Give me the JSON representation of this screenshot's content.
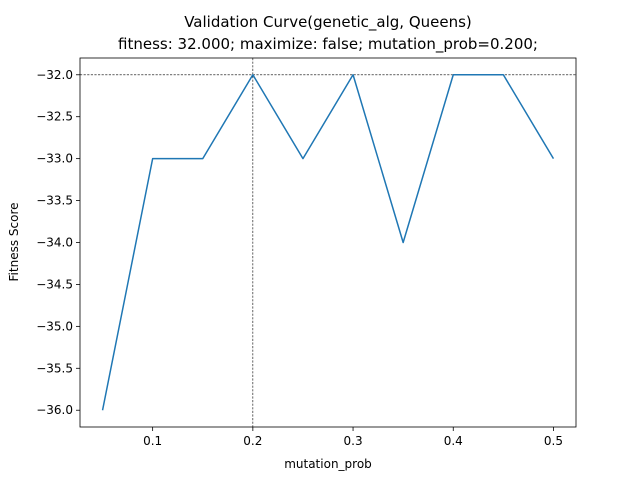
{
  "chart_data": {
    "type": "line",
    "title": "Validation Curve(genetic_alg, Queens)",
    "subtitle": "fitness: 32.000; maximize: false; mutation_prob=0.200;",
    "xlabel": "mutation_prob",
    "ylabel": "Fitness Score",
    "xlim": [
      0.0275,
      0.5225
    ],
    "ylim": [
      -36.2,
      -31.8
    ],
    "x_ticks": [
      0.1,
      0.2,
      0.3,
      0.4,
      0.5
    ],
    "x_tick_labels": [
      "0.1",
      "0.2",
      "0.3",
      "0.4",
      "0.5"
    ],
    "y_ticks": [
      -32.0,
      -32.5,
      -33.0,
      -33.5,
      -34.0,
      -34.5,
      -35.0,
      -35.5,
      -36.0
    ],
    "y_tick_labels": [
      "−32.0",
      "−32.5",
      "−33.0",
      "−33.5",
      "−34.0",
      "−34.5",
      "−35.0",
      "−35.5",
      "−36.0"
    ],
    "grid": false,
    "series": [
      {
        "color": "#1f77b4",
        "x": [
          0.05,
          0.1,
          0.15,
          0.2,
          0.25,
          0.3,
          0.35,
          0.4,
          0.45,
          0.5
        ],
        "y": [
          -36,
          -33,
          -33,
          -32,
          -33,
          -32,
          -34,
          -32,
          -32,
          -33
        ]
      }
    ],
    "reference_lines": {
      "vertical_x": 0.2,
      "horizontal_y": -32.0,
      "style": "dashed",
      "color": "#000000"
    }
  }
}
